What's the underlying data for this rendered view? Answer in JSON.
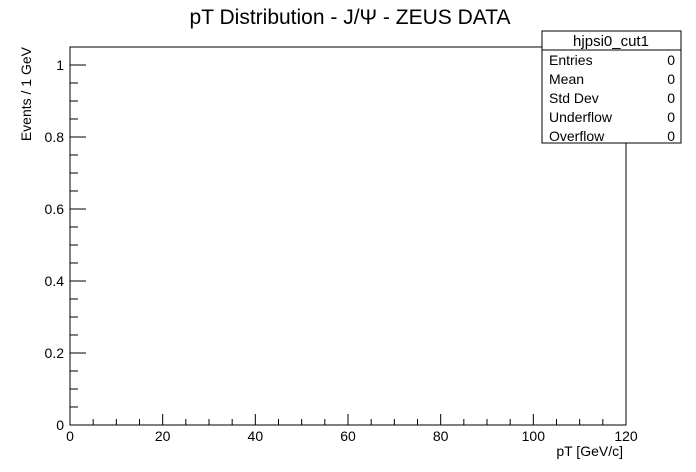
{
  "chart_data": {
    "type": "bar",
    "title": "pT Distribution - J/Ψ - ZEUS DATA",
    "xlabel": "pT [GeV/c]",
    "ylabel": "Events / 1 GeV",
    "xlim": [
      0,
      120
    ],
    "ylim": [
      0,
      1.05
    ],
    "x_ticks": [
      "0",
      "20",
      "40",
      "60",
      "80",
      "100",
      "120"
    ],
    "y_ticks": [
      "0",
      "0.2",
      "0.4",
      "0.6",
      "0.8",
      "1"
    ],
    "x_tick_values": [
      0,
      20,
      40,
      60,
      80,
      100,
      120
    ],
    "y_tick_values": [
      0,
      0.2,
      0.4,
      0.6,
      0.8,
      1.0
    ],
    "series": [
      {
        "values": []
      }
    ],
    "grid": false
  },
  "stats_box": {
    "name": "hjpsi0_cut1",
    "rows": [
      {
        "label": "Entries",
        "value": "0"
      },
      {
        "label": "Mean",
        "value": "0"
      },
      {
        "label": "Std Dev",
        "value": "0"
      },
      {
        "label": "Underflow",
        "value": "0"
      },
      {
        "label": "Overflow",
        "value": "0"
      }
    ]
  }
}
